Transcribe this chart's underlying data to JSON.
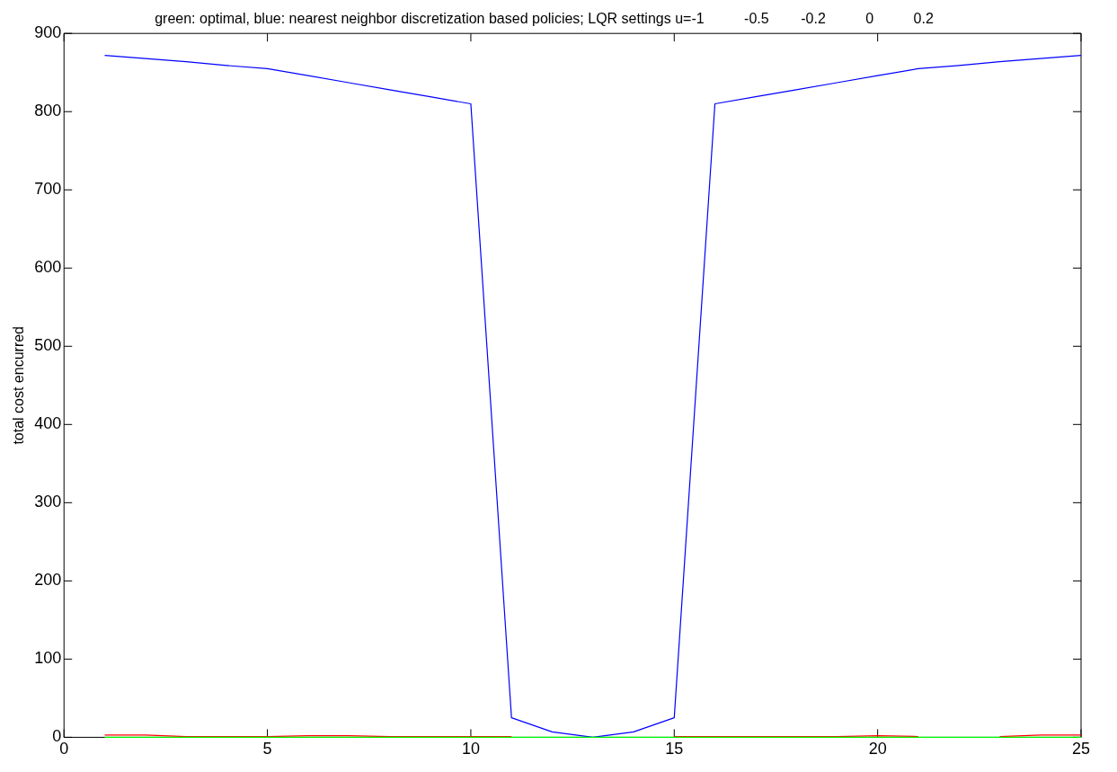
{
  "chart_data": {
    "type": "line",
    "title": "green: optimal, blue: nearest neighbor discretization based policies; LQR settings u=-1          -0.5        -0.2          0          0.2",
    "ylabel": "total cost encurred",
    "x": [
      1,
      2,
      3,
      4,
      5,
      6,
      7,
      8,
      9,
      10,
      11,
      12,
      13,
      14,
      15,
      16,
      17,
      18,
      19,
      20,
      21,
      22,
      23,
      24,
      25
    ],
    "series": [
      {
        "color": "#0000ff",
        "values": [
          872,
          868,
          864,
          859,
          855,
          846,
          837,
          828,
          819,
          810,
          25,
          7,
          0,
          7,
          25,
          810,
          819,
          828,
          837,
          846,
          855,
          859,
          864,
          868,
          872
        ]
      },
      {
        "color": "#ff0000",
        "values": [
          3,
          3,
          1,
          1,
          1,
          2,
          2,
          1,
          1,
          1,
          1,
          null,
          null,
          null,
          1,
          1,
          1,
          1,
          1,
          2,
          1,
          null,
          1,
          3,
          3
        ]
      },
      {
        "color": "#00ff00",
        "values": [
          0,
          0,
          0,
          0,
          0,
          0,
          0,
          0,
          0,
          0,
          0,
          0,
          0,
          0,
          0,
          0,
          0,
          0,
          0,
          0,
          0,
          0,
          0,
          0,
          0
        ]
      }
    ],
    "xlim": [
      0,
      25
    ],
    "xticks": [
      0,
      5,
      10,
      15,
      20,
      25
    ],
    "ylim": [
      0,
      900
    ],
    "yticks": [
      0,
      100,
      200,
      300,
      400,
      500,
      600,
      700,
      800,
      900
    ],
    "grid": false,
    "legend": false,
    "marker": "none",
    "line_style": "solid"
  }
}
